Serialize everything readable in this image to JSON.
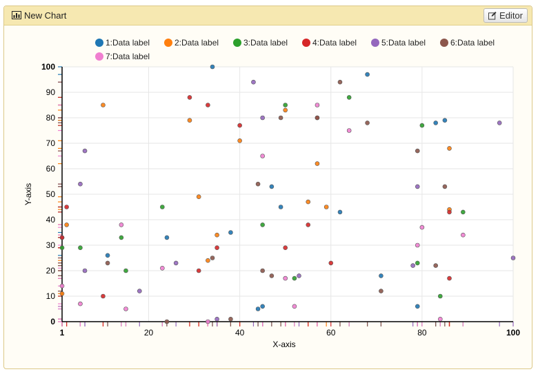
{
  "header": {
    "title": "New Chart",
    "editor_label": "Editor"
  },
  "icons": {
    "chart": "bar-chart-icon",
    "editor": "edit-icon"
  },
  "chart_data": {
    "type": "scatter",
    "title": "",
    "xlabel": "X-axis",
    "ylabel": "Y-axis",
    "xlim": [
      1,
      100
    ],
    "ylim": [
      0,
      100
    ],
    "x_ticks": [
      1,
      20,
      40,
      60,
      80,
      100
    ],
    "y_ticks": [
      0,
      10,
      20,
      30,
      40,
      50,
      60,
      70,
      80,
      90,
      100
    ],
    "grid": true,
    "legend_position": "top",
    "rug_marks": true,
    "series": [
      {
        "name": "1:Data label",
        "color": "#1f77b4",
        "points": [
          [
            1,
            33
          ],
          [
            11,
            26
          ],
          [
            24,
            33
          ],
          [
            34,
            100
          ],
          [
            38,
            35
          ],
          [
            44,
            5
          ],
          [
            45,
            6
          ],
          [
            47,
            53
          ],
          [
            49,
            45
          ],
          [
            62,
            43
          ],
          [
            68,
            97
          ],
          [
            71,
            18
          ],
          [
            79,
            6
          ],
          [
            83,
            78
          ],
          [
            85,
            79
          ]
        ]
      },
      {
        "name": "2:Data label",
        "color": "#ff7f0e",
        "points": [
          [
            1,
            11
          ],
          [
            2,
            38
          ],
          [
            10,
            85
          ],
          [
            29,
            79
          ],
          [
            31,
            49
          ],
          [
            33,
            24
          ],
          [
            35,
            34
          ],
          [
            40,
            71
          ],
          [
            50,
            83
          ],
          [
            55,
            47
          ],
          [
            57,
            62
          ],
          [
            59,
            45
          ],
          [
            86,
            68
          ],
          [
            86,
            44
          ]
        ]
      },
      {
        "name": "3:Data label",
        "color": "#2ca02c",
        "points": [
          [
            1,
            29
          ],
          [
            5,
            29
          ],
          [
            14,
            33
          ],
          [
            15,
            20
          ],
          [
            23,
            45
          ],
          [
            45,
            38
          ],
          [
            50,
            85
          ],
          [
            52,
            17
          ],
          [
            64,
            88
          ],
          [
            79,
            23
          ],
          [
            80,
            77
          ],
          [
            84,
            10
          ],
          [
            89,
            43
          ]
        ]
      },
      {
        "name": "4:Data label",
        "color": "#d62728",
        "points": [
          [
            1,
            33
          ],
          [
            2,
            45
          ],
          [
            10,
            10
          ],
          [
            29,
            88
          ],
          [
            31,
            20
          ],
          [
            33,
            85
          ],
          [
            35,
            29
          ],
          [
            40,
            77
          ],
          [
            50,
            29
          ],
          [
            55,
            38
          ],
          [
            57,
            80
          ],
          [
            60,
            23
          ],
          [
            86,
            43
          ],
          [
            86,
            17
          ]
        ]
      },
      {
        "name": "5:Data label",
        "color": "#9467bd",
        "points": [
          [
            5,
            54
          ],
          [
            6,
            67
          ],
          [
            6,
            20
          ],
          [
            18,
            12
          ],
          [
            26,
            23
          ],
          [
            35,
            1
          ],
          [
            43,
            94
          ],
          [
            45,
            80
          ],
          [
            53,
            18
          ],
          [
            78,
            22
          ],
          [
            79,
            53
          ],
          [
            97,
            78
          ],
          [
            100,
            25
          ]
        ]
      },
      {
        "name": "6:Data label",
        "color": "#8c564b",
        "points": [
          [
            11,
            23
          ],
          [
            24,
            0
          ],
          [
            34,
            25
          ],
          [
            38,
            1
          ],
          [
            44,
            54
          ],
          [
            45,
            20
          ],
          [
            47,
            18
          ],
          [
            49,
            80
          ],
          [
            57,
            80
          ],
          [
            62,
            94
          ],
          [
            68,
            78
          ],
          [
            71,
            12
          ],
          [
            79,
            67
          ],
          [
            83,
            22
          ],
          [
            85,
            53
          ]
        ]
      },
      {
        "name": "7:Data label",
        "color": "#f07fd0",
        "points": [
          [
            1,
            14
          ],
          [
            5,
            7
          ],
          [
            14,
            38
          ],
          [
            15,
            5
          ],
          [
            23,
            21
          ],
          [
            33,
            0
          ],
          [
            45,
            65
          ],
          [
            50,
            17
          ],
          [
            52,
            6
          ],
          [
            57,
            85
          ],
          [
            64,
            75
          ],
          [
            79,
            30
          ],
          [
            80,
            37
          ],
          [
            84,
            1
          ],
          [
            89,
            34
          ]
        ]
      }
    ]
  }
}
